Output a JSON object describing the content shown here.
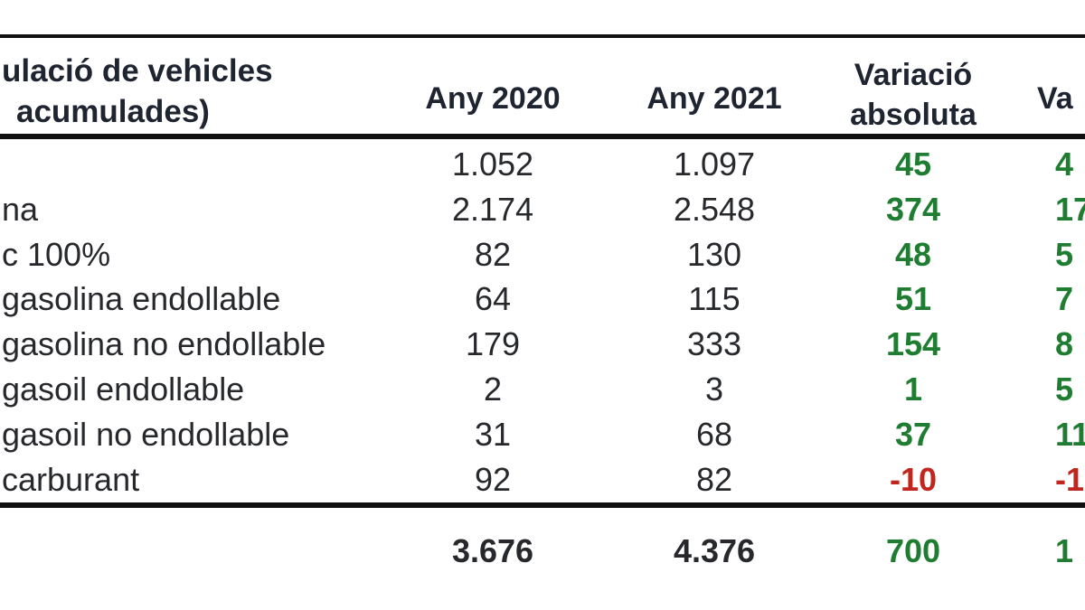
{
  "chart_data": {
    "type": "table",
    "header": {
      "title_line1": "ulació de vehicles",
      "title_line2": "acumulades)",
      "col_2020": "Any 2020",
      "col_2021": "Any 2021",
      "col_var_abs_line1": "Variació",
      "col_var_abs_line2": "absoluta",
      "col_var_rel_fragment": "Va"
    },
    "rows": [
      {
        "label": "",
        "y2020": "1.052",
        "y2021": "1.097",
        "var_abs": "45",
        "var_rel": "4",
        "var_color": "#1e7d30"
      },
      {
        "label": "na",
        "y2020": "2.174",
        "y2021": "2.548",
        "var_abs": "374",
        "var_rel": "17",
        "var_color": "#1e7d30"
      },
      {
        "label": "c 100%",
        "y2020": "82",
        "y2021": "130",
        "var_abs": "48",
        "var_rel": "5",
        "var_color": "#1e7d30"
      },
      {
        "label": "gasolina endollable",
        "y2020": "64",
        "y2021": "115",
        "var_abs": "51",
        "var_rel": "7",
        "var_color": "#1e7d30"
      },
      {
        "label": "gasolina no endollable",
        "y2020": "179",
        "y2021": "333",
        "var_abs": "154",
        "var_rel": "8",
        "var_color": "#1e7d30"
      },
      {
        "label": "gasoil endollable",
        "y2020": "2",
        "y2021": "3",
        "var_abs": "1",
        "var_rel": "5",
        "var_color": "#1e7d30"
      },
      {
        "label": "gasoil no endollable",
        "y2020": "31",
        "y2021": "68",
        "var_abs": "37",
        "var_rel": "11",
        "var_color": "#1e7d30"
      },
      {
        "label": "carburant",
        "y2020": "92",
        "y2021": "82",
        "var_abs": "-10",
        "var_rel": "-1",
        "var_color": "#c1251d"
      }
    ],
    "total": {
      "y2020": "3.676",
      "y2021": "4.376",
      "var_abs": "700",
      "var_rel": "1",
      "var_color": "#1e7d30"
    },
    "colors": {
      "positive": "#1e7d30",
      "negative": "#c1251d",
      "text": "#26282c",
      "header_text": "#1e2430",
      "rule_line": "#101010",
      "background": "#ffffff"
    }
  }
}
